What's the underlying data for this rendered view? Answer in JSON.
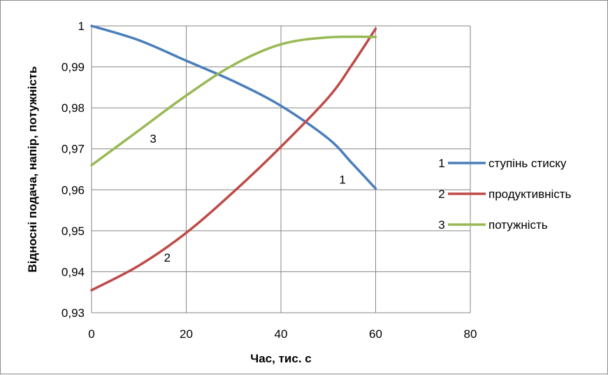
{
  "chart_data": {
    "type": "line",
    "title": "",
    "xlabel": "Час, тис. с",
    "ylabel": "Відносні подача, напір, потужність",
    "xlim": [
      0,
      80
    ],
    "ylim": [
      0.93,
      1.0
    ],
    "x_ticks": [
      "0",
      "20",
      "40",
      "60",
      "80"
    ],
    "y_ticks": [
      "0,93",
      "0,94",
      "0,95",
      "0,96",
      "0,97",
      "0,98",
      "0,99",
      "1"
    ],
    "grid": true,
    "legend_position": "right",
    "series": [
      {
        "name": "ступінь стиску",
        "number": "1",
        "color": "#4a7ebb",
        "x": [
          0,
          10,
          20,
          30,
          40,
          50,
          55,
          60
        ],
        "y": [
          1.0,
          0.9965,
          0.9915,
          0.9865,
          0.9805,
          0.9725,
          0.9665,
          0.9603
        ]
      },
      {
        "name": "продуктивність",
        "number": "2",
        "color": "#be4b48",
        "x": [
          0,
          10,
          20,
          30,
          40,
          50,
          55,
          60
        ],
        "y": [
          0.9355,
          0.9415,
          0.9495,
          0.9595,
          0.9705,
          0.9825,
          0.9905,
          0.9993
        ]
      },
      {
        "name": "потужність",
        "number": "3",
        "color": "#98b954",
        "x": [
          0,
          10,
          20,
          30,
          40,
          50,
          60
        ],
        "y": [
          0.966,
          0.9745,
          0.983,
          0.9905,
          0.9955,
          0.9972,
          0.9973
        ]
      }
    ],
    "curve_labels": [
      {
        "text": "1",
        "x": 53,
        "y": 0.9625
      },
      {
        "text": "2",
        "x": 16,
        "y": 0.9435
      },
      {
        "text": "3",
        "x": 13,
        "y": 0.9725
      }
    ]
  }
}
